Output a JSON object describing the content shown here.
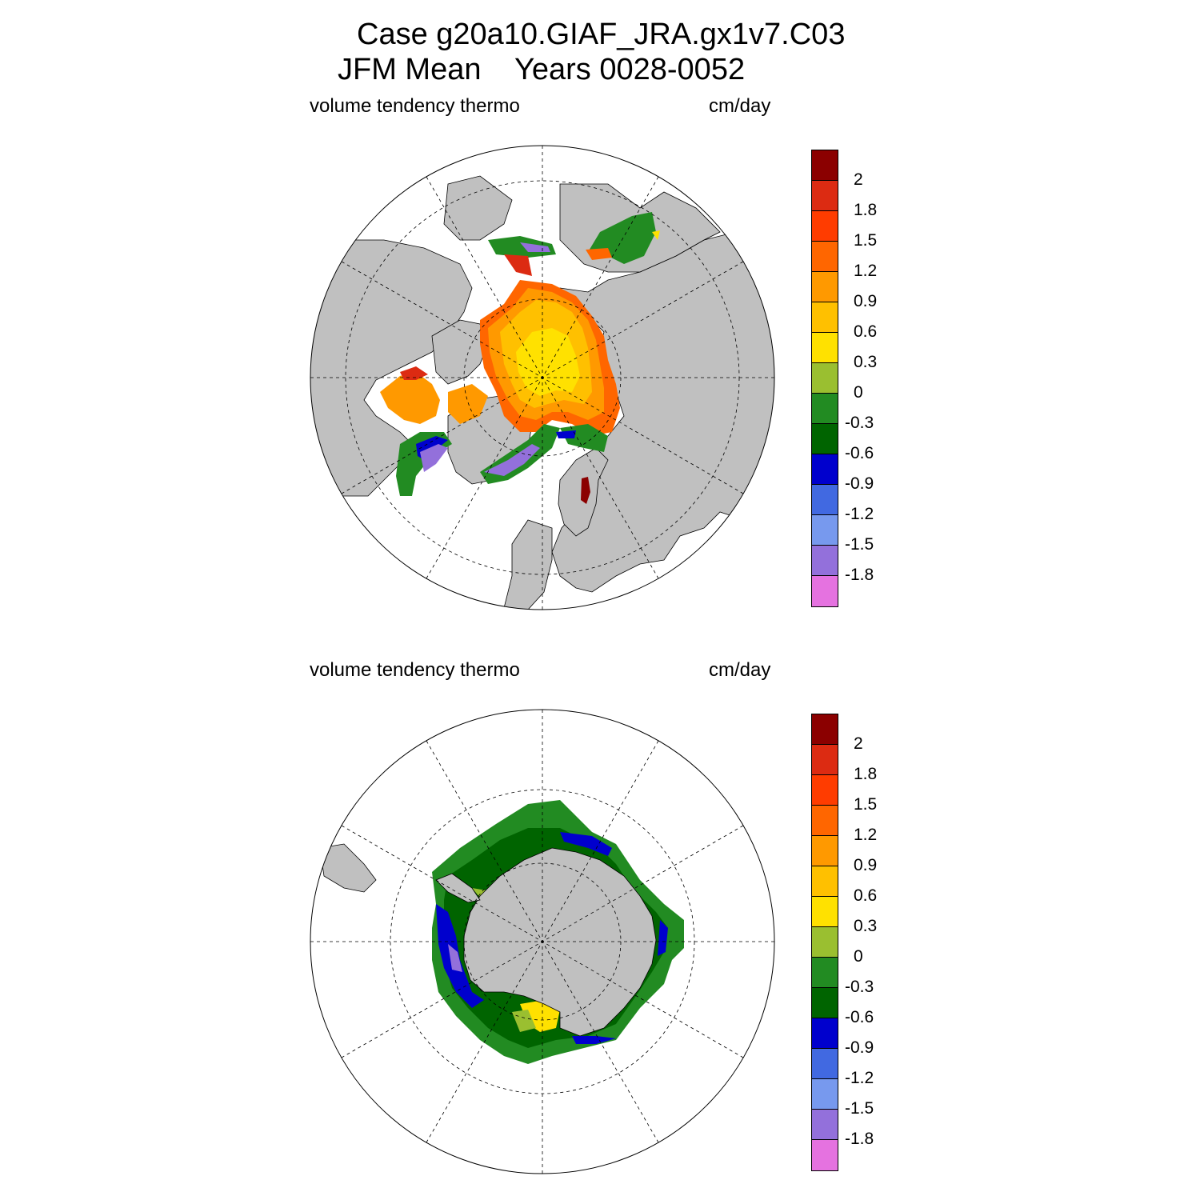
{
  "header": {
    "line1": "Case g20a10.GIAF_JRA.gx1v7.C03",
    "line2": "JFM Mean    Years 0028-0052"
  },
  "panels": [
    {
      "id": "north",
      "hemisphere": "Northern Hemisphere (Arctic)",
      "left_label": "volume tendency thermo",
      "right_label": "cm/day"
    },
    {
      "id": "south",
      "hemisphere": "Southern Hemisphere (Antarctic)",
      "left_label": "volume tendency thermo",
      "right_label": "cm/day"
    }
  ],
  "colorbar": {
    "units": "cm/day",
    "colors": [
      "#8b0000",
      "#dc2b12",
      "#ff3c00",
      "#ff6600",
      "#ff9900",
      "#ffc000",
      "#ffe100",
      "#9abf30",
      "#228b22",
      "#006400",
      "#0000cd",
      "#4169e1",
      "#7799ee",
      "#9370db",
      "#e572e0"
    ],
    "labels": [
      "2",
      "1.8",
      "1.5",
      "1.2",
      "0.9",
      "0.6",
      "0.3",
      "0",
      "-0.3",
      "-0.6",
      "-0.9",
      "-1.2",
      "-1.5",
      "-1.8"
    ]
  },
  "colors": {
    "land": "#c0c0c0",
    "ocean": "#ffffff",
    "grid": "#000000"
  }
}
